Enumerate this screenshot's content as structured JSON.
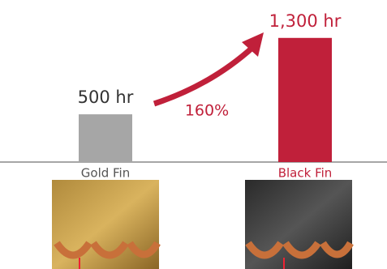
{
  "chart_data": {
    "type": "bar",
    "categories": [
      "Gold Fin",
      "Black Fin"
    ],
    "values": [
      500,
      1300
    ],
    "value_labels": [
      "500 hr",
      "1,300 hr"
    ],
    "colors": [
      "#a6a6a6",
      "#c0203a"
    ],
    "annotation": "160%",
    "ylim": [
      0,
      1400
    ]
  }
}
